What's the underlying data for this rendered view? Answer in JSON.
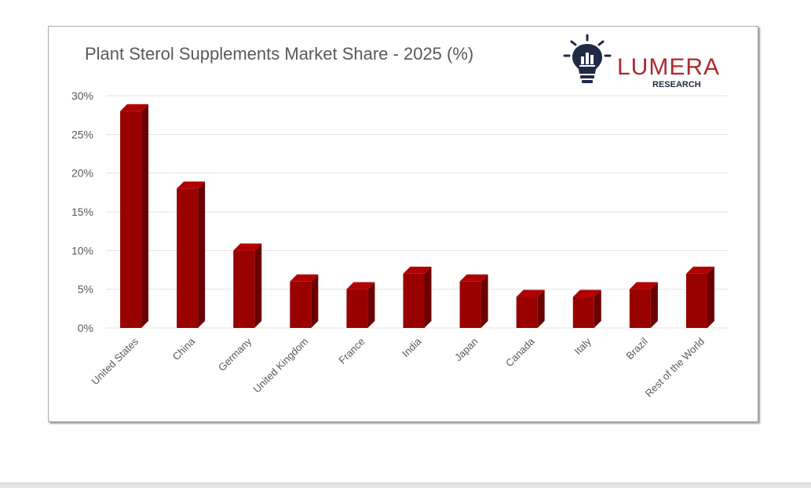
{
  "brand": {
    "name": "LUMERA",
    "sub": "RESEARCH",
    "color": "#b0282d",
    "icon": "lightbulb-chart-icon"
  },
  "chart_data": {
    "type": "bar",
    "title": "Plant Sterol Supplements Market Share - 2025 (%)",
    "xlabel": "",
    "ylabel": "",
    "ylim": [
      0,
      30
    ],
    "ytick_labels": [
      "0%",
      "5%",
      "10%",
      "15%",
      "20%",
      "25%",
      "30%"
    ],
    "grid": true,
    "legend": "none",
    "bar_color": "#990000",
    "categories": [
      "United States",
      "China",
      "Germany",
      "United Kingdom",
      "France",
      "India",
      "Japan",
      "Canada",
      "Italy",
      "Brazil",
      "Rest of the World"
    ],
    "values": [
      28,
      18,
      10,
      6,
      5,
      7,
      6,
      4,
      4,
      5,
      7
    ]
  }
}
